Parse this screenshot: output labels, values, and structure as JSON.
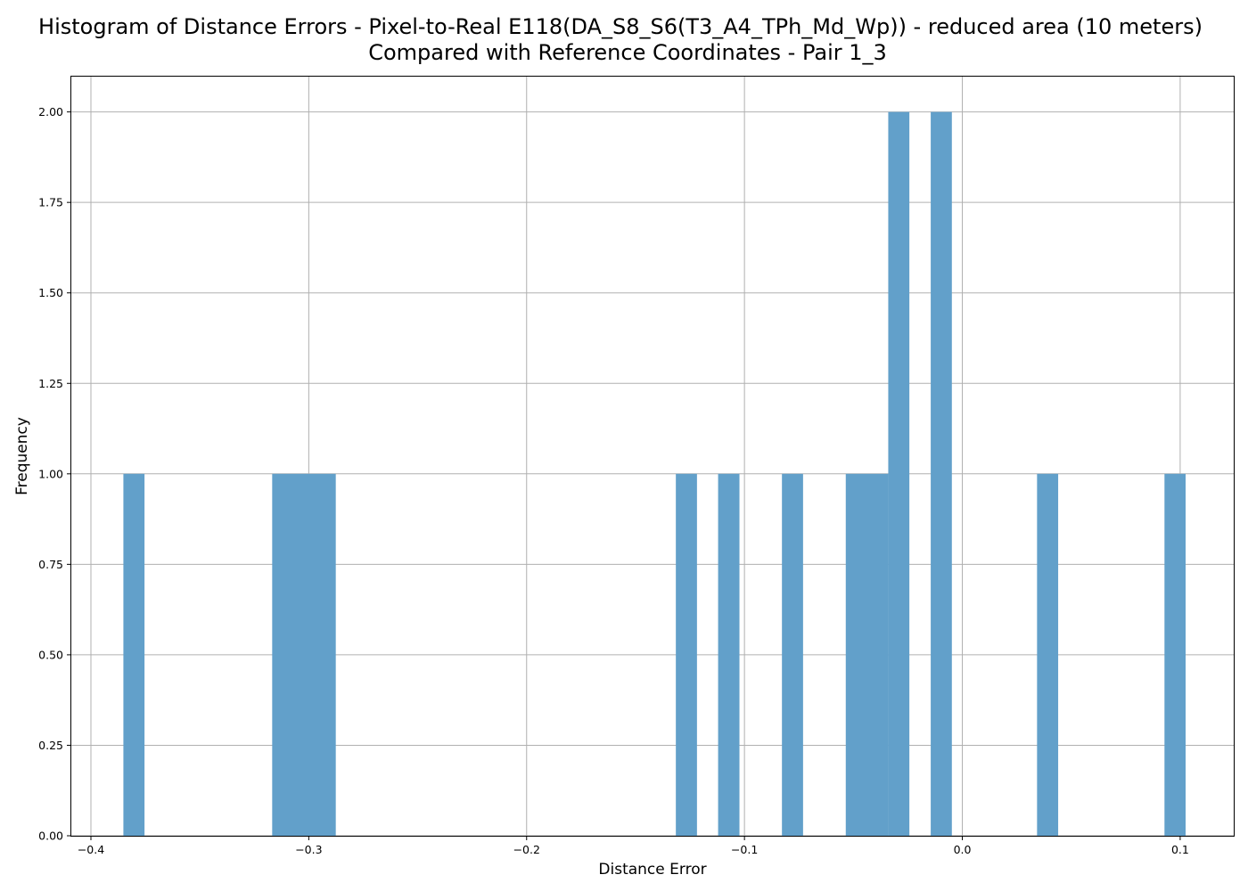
{
  "chart_data": {
    "type": "bar",
    "title_line1": "Histogram of Distance Errors - Pixel-to-Real E118(DA_S8_S6(T3_A4_TPh_Md_Wp)) - reduced area (10 meters)",
    "title_line2": "Compared with Reference Coordinates - Pair 1_3",
    "xlabel": "Distance Error",
    "ylabel": "Frequency",
    "xlim": [
      -0.409,
      0.125
    ],
    "ylim": [
      0,
      2.1
    ],
    "grid": true,
    "bar_color": "#62a0ca",
    "x_ticks": [
      -0.4,
      -0.3,
      -0.2,
      -0.1,
      0.0,
      0.1
    ],
    "x_tick_labels": [
      "−0.4",
      "−0.3",
      "−0.2",
      "−0.1",
      "0.0",
      "0.1"
    ],
    "y_ticks": [
      0,
      0.25,
      0.5,
      0.75,
      1.0,
      1.25,
      1.5,
      1.75,
      2.0
    ],
    "y_tick_labels": [
      "0.00",
      "0.25",
      "0.50",
      "0.75",
      "1.00",
      "1.25",
      "1.50",
      "1.75",
      "2.00"
    ],
    "bins": [
      {
        "x0": -0.3851,
        "x1": -0.3754,
        "count": 1
      },
      {
        "x0": -0.3168,
        "x1": -0.2876,
        "count": 1
      },
      {
        "x0": -0.1315,
        "x1": -0.1218,
        "count": 1
      },
      {
        "x0": -0.1121,
        "x1": -0.1023,
        "count": 1
      },
      {
        "x0": -0.0828,
        "x1": -0.0731,
        "count": 1
      },
      {
        "x0": -0.0535,
        "x1": -0.034,
        "count": 1
      },
      {
        "x0": -0.034,
        "x1": -0.0243,
        "count": 2
      },
      {
        "x0": -0.0145,
        "x1": -0.0048,
        "count": 2
      },
      {
        "x0": 0.0343,
        "x1": 0.044,
        "count": 1
      },
      {
        "x0": 0.0928,
        "x1": 0.1025,
        "count": 1
      }
    ]
  }
}
